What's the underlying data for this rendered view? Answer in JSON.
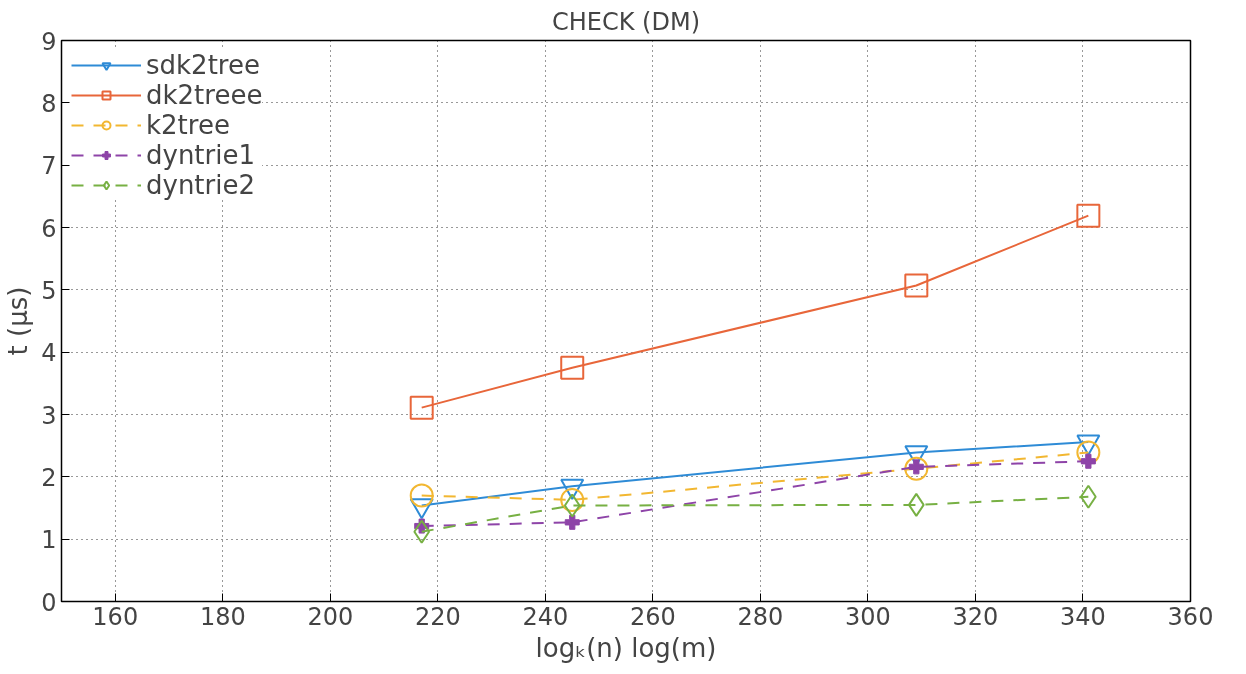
{
  "chart_data": {
    "type": "line",
    "title": "CHECK (DM)",
    "xlabel": "logₖ(n) log(m)",
    "ylabel": "t (µs)",
    "x": [
      217,
      245,
      309,
      341
    ],
    "xlim": [
      150,
      360
    ],
    "xticks": [
      160,
      180,
      200,
      220,
      240,
      260,
      280,
      300,
      320,
      340,
      360
    ],
    "ylim": [
      0,
      9
    ],
    "yticks": [
      0,
      1,
      2,
      3,
      4,
      5,
      6,
      7,
      8,
      9
    ],
    "grid": true,
    "legend": "top left",
    "series": [
      {
        "name": "sdk2tree",
        "color": "#2e8bd6",
        "marker": "triangle",
        "line_style": "solid",
        "values": [
          1.54,
          1.85,
          2.39,
          2.56
        ]
      },
      {
        "name": "dk2treee",
        "color": "#e8663a",
        "marker": "square",
        "line_style": "solid",
        "values": [
          3.11,
          3.75,
          5.07,
          6.19
        ]
      },
      {
        "name": "k2tree",
        "color": "#f2b731",
        "marker": "circle",
        "line_style": "dashed",
        "values": [
          1.7,
          1.63,
          2.13,
          2.39
        ]
      },
      {
        "name": "dyntrie1",
        "color": "#8e44a8",
        "marker": "cross",
        "line_style": "dashed",
        "values": [
          1.21,
          1.27,
          2.16,
          2.25
        ]
      },
      {
        "name": "dyntrie2",
        "color": "#77b043",
        "marker": "diamond",
        "line_style": "dashed",
        "values": [
          1.12,
          1.54,
          1.55,
          1.68
        ]
      }
    ]
  }
}
